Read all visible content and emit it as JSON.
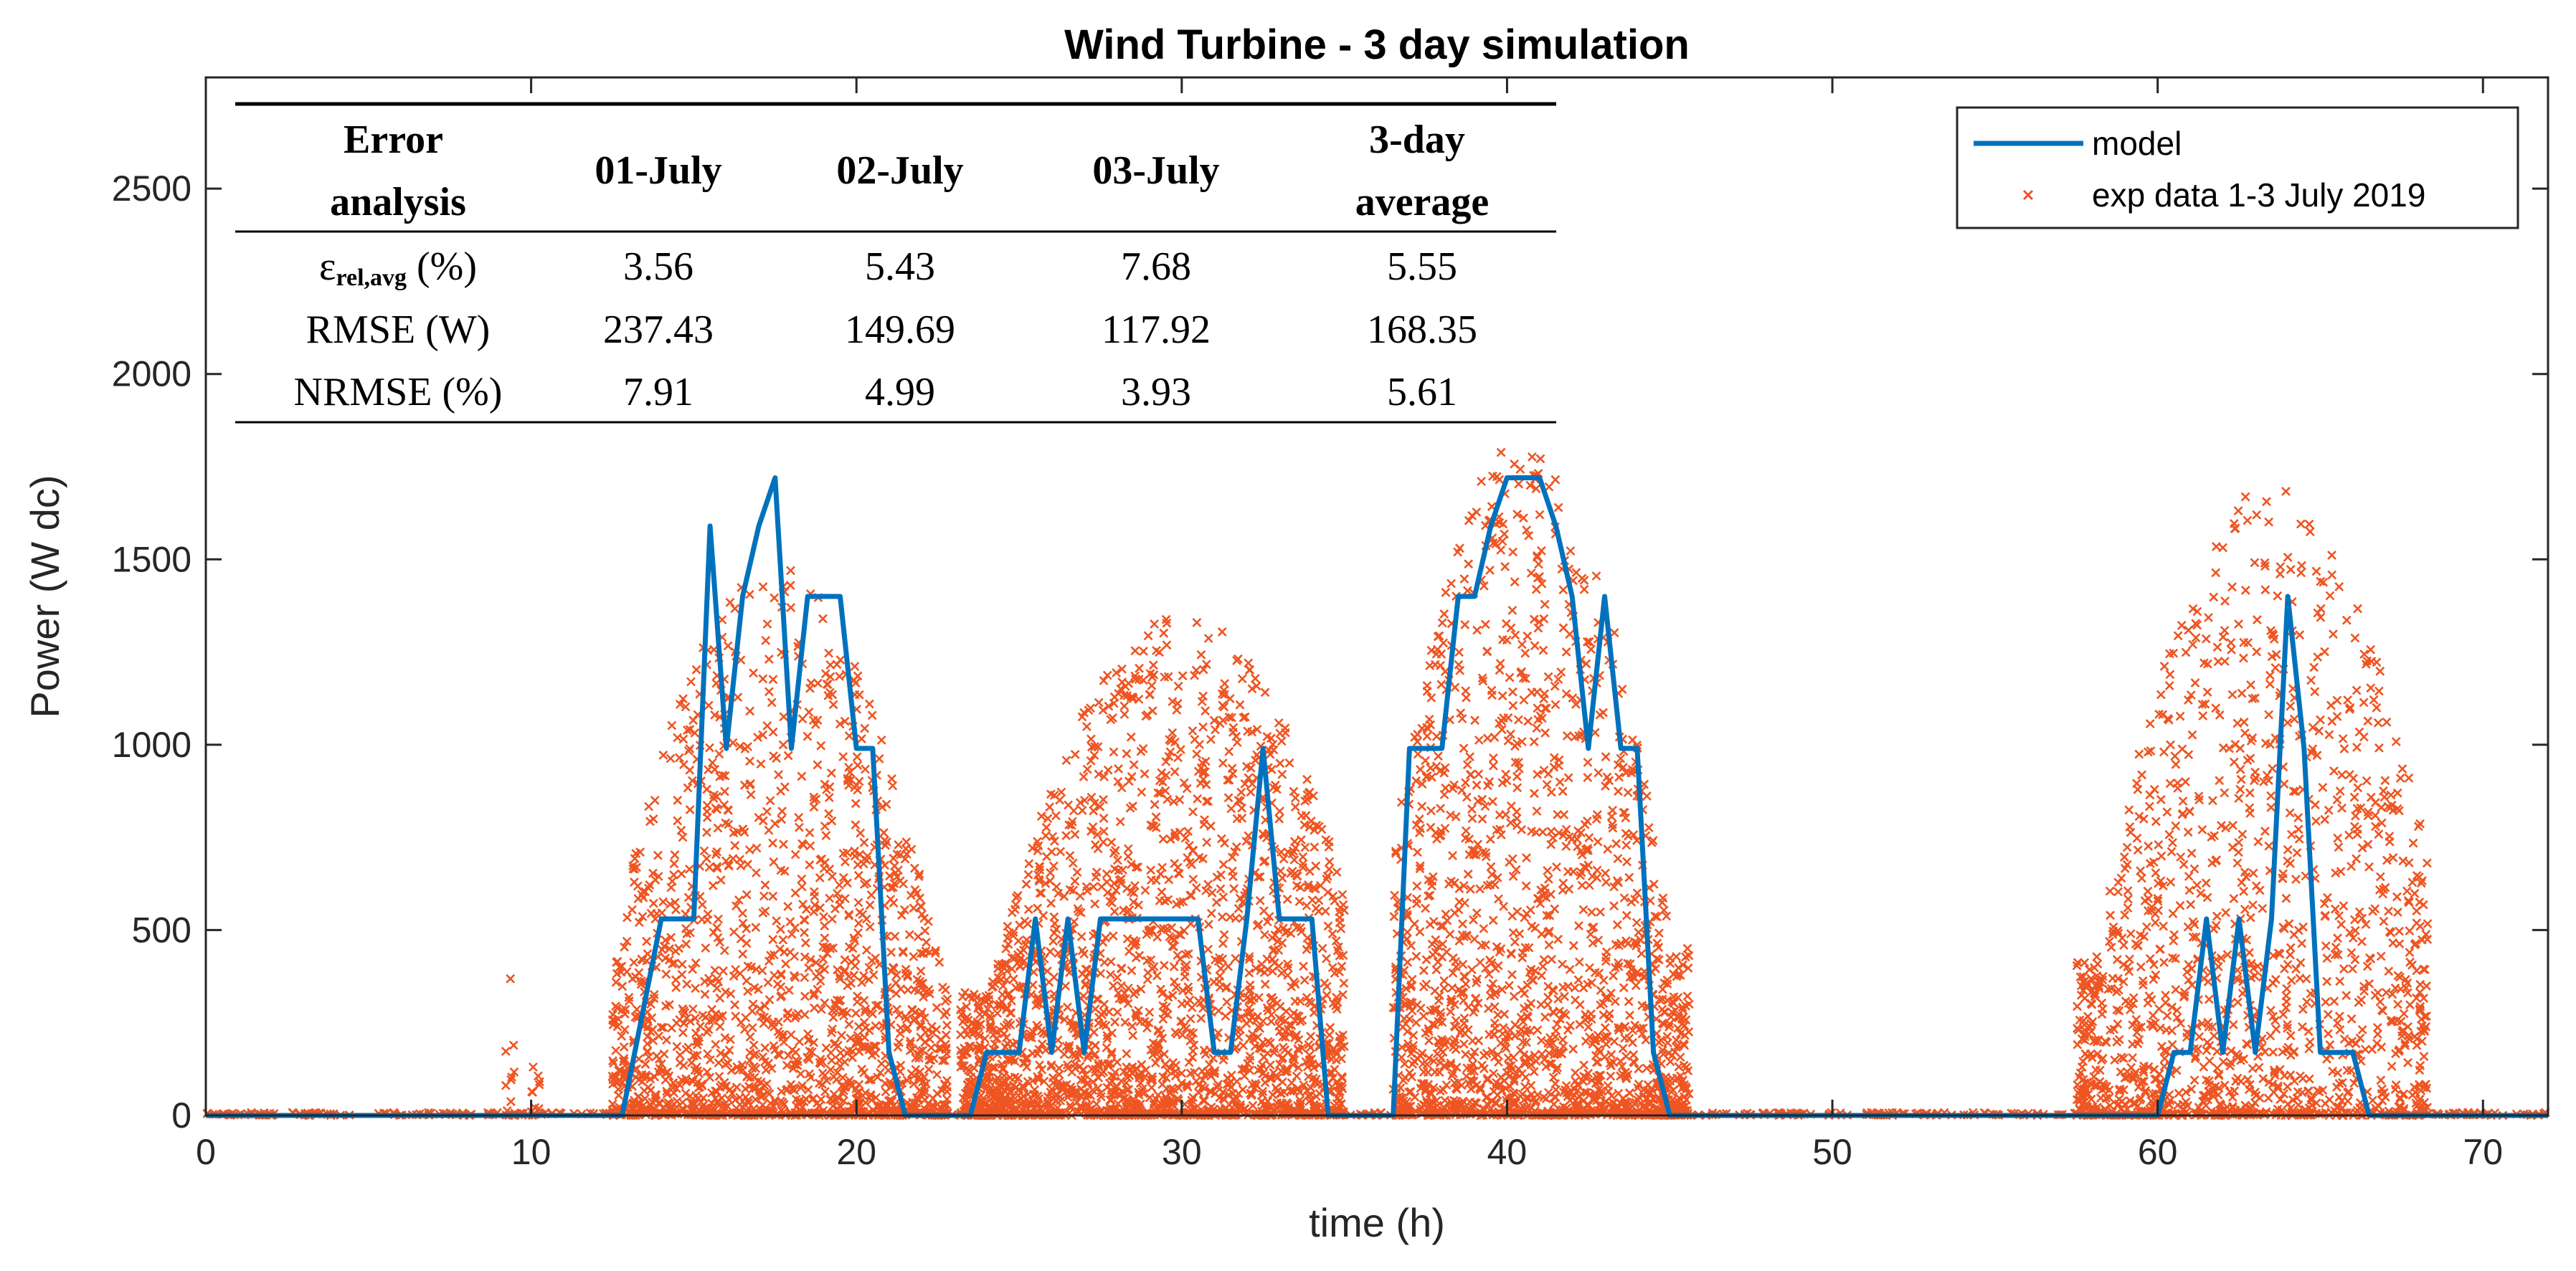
{
  "chart_data": {
    "type": "line",
    "title": "Wind Turbine - 3 day simulation",
    "xlabel": "time (h)",
    "ylabel": "Power (W dc)",
    "xlim": [
      0,
      72
    ],
    "ylim": [
      0,
      2800
    ],
    "xticks": [
      0,
      10,
      20,
      30,
      40,
      50,
      60,
      70
    ],
    "yticks": [
      0,
      500,
      1000,
      1500,
      2000,
      2500
    ],
    "grid": false,
    "legend_position": "top-right",
    "colors": {
      "model": "#0072BD",
      "exp": "#EE5522",
      "axis": "#262626"
    },
    "series": [
      {
        "name": "model",
        "type": "line",
        "x": [
          0,
          12.8,
          14,
          15,
          15.5,
          16,
          16.5,
          17,
          17.5,
          18,
          18.5,
          19,
          19.5,
          20,
          20.5,
          21,
          21.5,
          22,
          23.5,
          24,
          25,
          25.5,
          26,
          26.5,
          27,
          27.5,
          28,
          29,
          30,
          30.5,
          31,
          31.5,
          32,
          32.5,
          33,
          33.5,
          34,
          34.5,
          36.5,
          37,
          38,
          38.5,
          39,
          39.5,
          40,
          40.5,
          41,
          41.5,
          42,
          42.5,
          43,
          43.5,
          44,
          44.5,
          45,
          45.5,
          60,
          60.5,
          61,
          61.5,
          62,
          62.5,
          63,
          63.5,
          64,
          64.5,
          65,
          65.5,
          66,
          66.5,
          72
        ],
        "y": [
          0,
          0,
          530,
          530,
          1590,
          990,
          1400,
          1590,
          1720,
          990,
          1400,
          1400,
          1400,
          990,
          990,
          170,
          0,
          0,
          0,
          170,
          170,
          530,
          170,
          530,
          170,
          530,
          530,
          530,
          530,
          530,
          170,
          170,
          530,
          990,
          530,
          530,
          530,
          0,
          0,
          990,
          990,
          1400,
          1400,
          1590,
          1720,
          1720,
          1720,
          1590,
          1400,
          990,
          1400,
          990,
          990,
          170,
          0,
          0,
          0,
          170,
          170,
          530,
          170,
          530,
          170,
          530,
          1400,
          990,
          170,
          170,
          170,
          0,
          0
        ]
      },
      {
        "name": "exp data 1-3 July 2019",
        "type": "scatter",
        "marker": "x",
        "seed": 7,
        "clusters": [
          {
            "x_range": [
              9.2,
              9.5
            ],
            "count": 12,
            "y_max": 380
          },
          {
            "x_range": [
              10,
              10.3
            ],
            "count": 10,
            "y_max": 220
          },
          {
            "x_range": [
              12.5,
              22.8
            ],
            "count": 1500,
            "y_max": 1480,
            "peak_x": 17.5
          },
          {
            "x_range": [
              23.2,
              35
            ],
            "count": 2100,
            "y_max": 1350,
            "peak_x": 30
          },
          {
            "x_range": [
              36.5,
              45.6
            ],
            "count": 1600,
            "y_max": 1820,
            "peak_x": 40.5
          },
          {
            "x_range": [
              57.5,
              68.3
            ],
            "count": 1300,
            "y_max": 1700,
            "peak_x": 63.5
          }
        ]
      }
    ],
    "table": {
      "header": [
        "Error analysis",
        "01-July",
        "02-July",
        "03-July",
        "3-day average"
      ],
      "header_lines": [
        [
          "Error",
          "analysis"
        ],
        [
          "01-July"
        ],
        [
          "02-July"
        ],
        [
          "03-July"
        ],
        [
          "3-day",
          "average"
        ]
      ],
      "rows": [
        {
          "metric": "ε",
          "metric_sub": "rel,avg",
          "metric_unit": " (%)",
          "values": [
            "3.56",
            "5.43",
            "7.68",
            "5.55"
          ]
        },
        {
          "metric": "RMSE (W)",
          "values": [
            "237.43",
            "149.69",
            "117.92",
            "168.35"
          ]
        },
        {
          "metric": "NRMSE (%)",
          "values": [
            "7.91",
            "4.99",
            "3.93",
            "5.61"
          ]
        }
      ]
    }
  }
}
